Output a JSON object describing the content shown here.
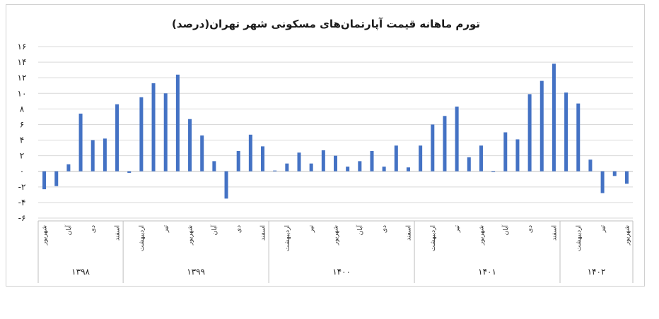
{
  "chart_data": {
    "type": "bar",
    "title": "تورم ماهانه قیمت آپارتمان‌های مسکونی شهر تهران(درصد)",
    "ylim": [
      -6,
      16
    ],
    "yticks": [
      16,
      14,
      12,
      10,
      8,
      6,
      4,
      2,
      0,
      -2,
      -4,
      -6
    ],
    "ytick_labels": [
      "۱۶",
      "۱۴",
      "۱۲",
      "۱۰",
      "۸",
      "۶",
      "۴",
      "۲",
      "۰",
      "-۲",
      "-۴",
      "-۶"
    ],
    "grid": true,
    "bar_color": "#4472c4",
    "values": [
      -2.3,
      -1.9,
      0.9,
      7.4,
      4.0,
      4.2,
      8.6,
      -0.2,
      9.5,
      11.3,
      10.0,
      12.4,
      6.7,
      4.6,
      1.3,
      -3.5,
      2.6,
      4.7,
      3.2,
      0.1,
      1.0,
      2.4,
      1.0,
      2.7,
      2.0,
      0.6,
      1.3,
      2.6,
      0.6,
      3.3,
      0.5,
      3.3,
      6.0,
      7.1,
      8.3,
      1.8,
      3.3,
      -0.1,
      5.0,
      4.1,
      9.9,
      11.6,
      13.8,
      10.1,
      8.7,
      1.5,
      -2.8,
      -0.6,
      -1.6
    ],
    "x_labels": [
      {
        "index": 0,
        "label": "شهریور"
      },
      {
        "index": 2,
        "label": "آبان"
      },
      {
        "index": 4,
        "label": "دی"
      },
      {
        "index": 6,
        "label": "اسفند"
      },
      {
        "index": 8,
        "label": "اردیبهشت"
      },
      {
        "index": 10,
        "label": "تیر"
      },
      {
        "index": 12,
        "label": "شهریور"
      },
      {
        "index": 14,
        "label": "آبان"
      },
      {
        "index": 16,
        "label": "دی"
      },
      {
        "index": 18,
        "label": "اسفند"
      },
      {
        "index": 20,
        "label": "اردیبهشت"
      },
      {
        "index": 22,
        "label": "تیر"
      },
      {
        "index": 24,
        "label": "شهریور"
      },
      {
        "index": 26,
        "label": "آبان"
      },
      {
        "index": 28,
        "label": "دی"
      },
      {
        "index": 30,
        "label": "اسفند"
      },
      {
        "index": 32,
        "label": "اردیبهشت"
      },
      {
        "index": 34,
        "label": "تیر"
      },
      {
        "index": 36,
        "label": "شهریور"
      },
      {
        "index": 38,
        "label": "آبان"
      },
      {
        "index": 40,
        "label": "دی"
      },
      {
        "index": 42,
        "label": "اسفند"
      },
      {
        "index": 44,
        "label": "اردیبهشت"
      },
      {
        "index": 46,
        "label": "تیر"
      },
      {
        "index": 48,
        "label": "شهریور"
      }
    ],
    "year_groups": [
      {
        "label": "۱۳۹۸",
        "start": 0,
        "end": 6
      },
      {
        "label": "۱۳۹۹",
        "start": 7,
        "end": 18
      },
      {
        "label": "۱۴۰۰",
        "start": 19,
        "end": 30
      },
      {
        "label": "۱۴۰۱",
        "start": 31,
        "end": 42
      },
      {
        "label": "۱۴۰۲",
        "start": 43,
        "end": 48
      }
    ]
  }
}
